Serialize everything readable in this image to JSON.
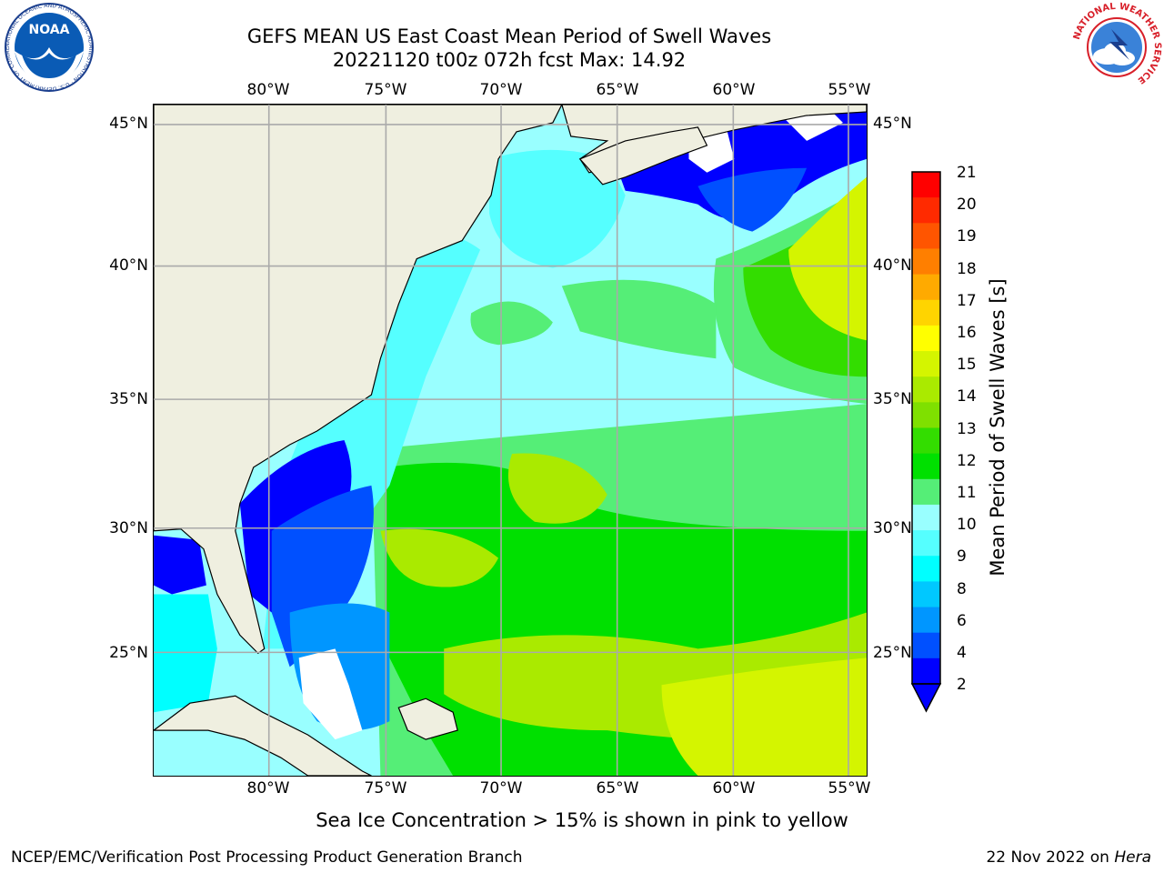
{
  "title_line1": "GEFS MEAN US East Coast Mean Period of Swell Waves",
  "title_line2": "20221120 t00z 072h fcst   Max: 14.92",
  "lon_labels": [
    "80°W",
    "75°W",
    "70°W",
    "65°W",
    "60°W",
    "55°W"
  ],
  "lat_labels": [
    "45°N",
    "40°N",
    "35°N",
    "30°N",
    "25°N"
  ],
  "colorbar": {
    "label": "Mean Period of Swell Waves [s]",
    "ticks": [
      "21",
      "20",
      "19",
      "18",
      "17",
      "16",
      "15",
      "14",
      "13",
      "12",
      "11",
      "10",
      "9",
      "8",
      "6",
      "4",
      "2"
    ],
    "colors": [
      "#ff0000",
      "#ff2a00",
      "#ff5500",
      "#ff7f00",
      "#ffaa00",
      "#ffd400",
      "#ffff00",
      "#d4f500",
      "#aaea00",
      "#7fe000",
      "#33dd00",
      "#00e000",
      "#55ee77",
      "#99ffff",
      "#55ffff",
      "#00ffff",
      "#00c8ff",
      "#0096ff",
      "#0050ff",
      "#0000ff"
    ]
  },
  "note": "Sea Ice Concentration > 15% is shown in pink to yellow",
  "footer_left": "NCEP/EMC/Verification Post Processing Product Generation Branch",
  "footer_date": "22 Nov 2022 on ",
  "footer_host": "Hera",
  "logos": {
    "noaa_text": "NOAA",
    "noaa_ring": "NATIONAL OCEANIC AND ATMOSPHERIC ADMINISTRATION · U.S. DEPARTMENT OF COMMERCE",
    "nws_ring": "NATIONAL WEATHER SERVICE"
  }
}
